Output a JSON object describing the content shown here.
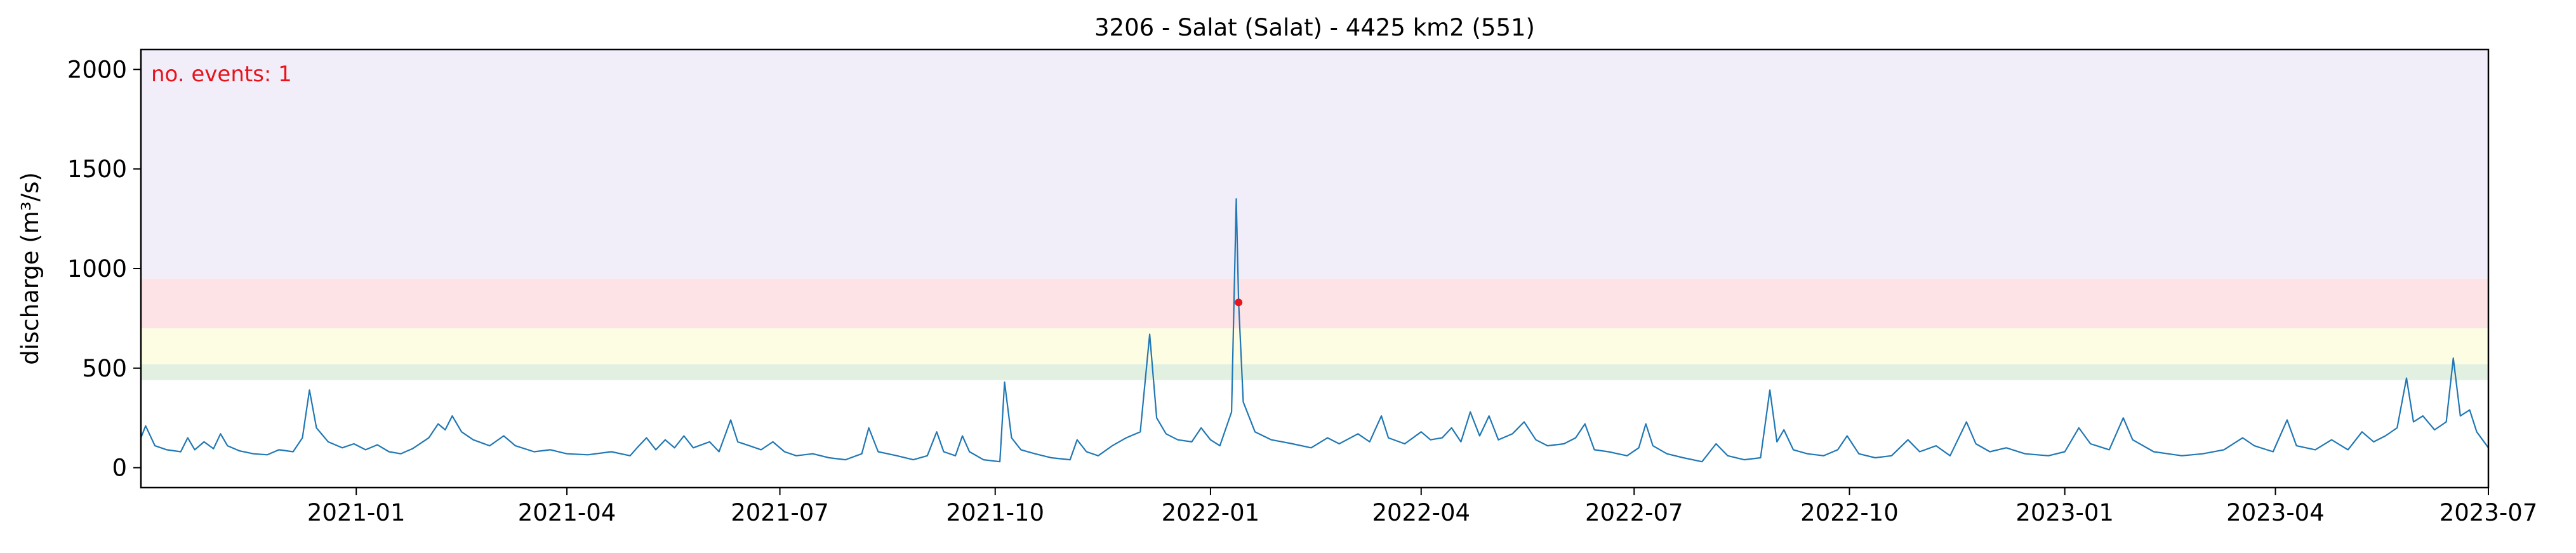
{
  "chart_data": {
    "type": "line",
    "title": "3206 - Salat (Salat) - 4425 km2 (551)",
    "xlabel": "",
    "ylabel": "discharge (m³/s)",
    "xlim": [
      "2020-10-01",
      "2023-07-01"
    ],
    "ylim": [
      -100,
      2100
    ],
    "x_ticks": [
      "2021-01",
      "2021-04",
      "2021-07",
      "2021-10",
      "2022-01",
      "2022-04",
      "2022-07",
      "2022-10",
      "2023-01",
      "2023-04",
      "2023-07"
    ],
    "y_ticks": [
      0,
      500,
      1000,
      1500,
      2000
    ],
    "grid": false,
    "bands": [
      {
        "from": 440,
        "to": 520,
        "color": "#e2f0e2"
      },
      {
        "from": 520,
        "to": 700,
        "color": "#fdfde3"
      },
      {
        "from": 700,
        "to": 950,
        "color": "#fde3e5"
      },
      {
        "from": 950,
        "to": 2100,
        "color": "#f1eefa"
      }
    ],
    "series": [
      {
        "color": "#1f77b4",
        "points": [
          [
            "2020-10-01",
            150
          ],
          [
            "2020-10-03",
            210
          ],
          [
            "2020-10-07",
            110
          ],
          [
            "2020-10-12",
            90
          ],
          [
            "2020-10-18",
            80
          ],
          [
            "2020-10-21",
            150
          ],
          [
            "2020-10-24",
            90
          ],
          [
            "2020-10-28",
            130
          ],
          [
            "2020-11-01",
            95
          ],
          [
            "2020-11-04",
            170
          ],
          [
            "2020-11-07",
            110
          ],
          [
            "2020-11-12",
            85
          ],
          [
            "2020-11-18",
            70
          ],
          [
            "2020-11-24",
            65
          ],
          [
            "2020-11-29",
            90
          ],
          [
            "2020-12-05",
            80
          ],
          [
            "2020-12-09",
            150
          ],
          [
            "2020-12-12",
            390
          ],
          [
            "2020-12-15",
            200
          ],
          [
            "2020-12-20",
            130
          ],
          [
            "2020-12-26",
            100
          ],
          [
            "2020-12-31",
            120
          ],
          [
            "2021-01-05",
            90
          ],
          [
            "2021-01-10",
            115
          ],
          [
            "2021-01-15",
            80
          ],
          [
            "2021-01-20",
            70
          ],
          [
            "2021-01-25",
            95
          ],
          [
            "2021-02-01",
            150
          ],
          [
            "2021-02-05",
            220
          ],
          [
            "2021-02-08",
            190
          ],
          [
            "2021-02-11",
            260
          ],
          [
            "2021-02-15",
            180
          ],
          [
            "2021-02-20",
            140
          ],
          [
            "2021-02-27",
            110
          ],
          [
            "2021-03-05",
            160
          ],
          [
            "2021-03-10",
            110
          ],
          [
            "2021-03-18",
            80
          ],
          [
            "2021-03-25",
            90
          ],
          [
            "2021-04-01",
            70
          ],
          [
            "2021-04-10",
            65
          ],
          [
            "2021-04-20",
            80
          ],
          [
            "2021-04-28",
            60
          ],
          [
            "2021-05-01",
            100
          ],
          [
            "2021-05-05",
            150
          ],
          [
            "2021-05-09",
            90
          ],
          [
            "2021-05-13",
            140
          ],
          [
            "2021-05-17",
            100
          ],
          [
            "2021-05-21",
            160
          ],
          [
            "2021-05-25",
            100
          ],
          [
            "2021-06-01",
            130
          ],
          [
            "2021-06-05",
            80
          ],
          [
            "2021-06-10",
            240
          ],
          [
            "2021-06-13",
            130
          ],
          [
            "2021-06-18",
            110
          ],
          [
            "2021-06-23",
            90
          ],
          [
            "2021-06-28",
            130
          ],
          [
            "2021-07-03",
            80
          ],
          [
            "2021-07-08",
            60
          ],
          [
            "2021-07-15",
            70
          ],
          [
            "2021-07-22",
            50
          ],
          [
            "2021-07-29",
            40
          ],
          [
            "2021-08-05",
            70
          ],
          [
            "2021-08-08",
            200
          ],
          [
            "2021-08-12",
            80
          ],
          [
            "2021-08-20",
            60
          ],
          [
            "2021-08-27",
            40
          ],
          [
            "2021-09-02",
            60
          ],
          [
            "2021-09-06",
            180
          ],
          [
            "2021-09-09",
            80
          ],
          [
            "2021-09-14",
            60
          ],
          [
            "2021-09-17",
            160
          ],
          [
            "2021-09-20",
            80
          ],
          [
            "2021-09-26",
            40
          ],
          [
            "2021-10-03",
            30
          ],
          [
            "2021-10-05",
            430
          ],
          [
            "2021-10-08",
            150
          ],
          [
            "2021-10-12",
            90
          ],
          [
            "2021-10-18",
            70
          ],
          [
            "2021-10-25",
            50
          ],
          [
            "2021-11-02",
            40
          ],
          [
            "2021-11-05",
            140
          ],
          [
            "2021-11-09",
            80
          ],
          [
            "2021-11-14",
            60
          ],
          [
            "2021-11-20",
            110
          ],
          [
            "2021-11-26",
            150
          ],
          [
            "2021-12-02",
            180
          ],
          [
            "2021-12-06",
            670
          ],
          [
            "2021-12-09",
            250
          ],
          [
            "2021-12-13",
            170
          ],
          [
            "2021-12-18",
            140
          ],
          [
            "2021-12-24",
            130
          ],
          [
            "2021-12-28",
            200
          ],
          [
            "2022-01-01",
            140
          ],
          [
            "2022-01-05",
            110
          ],
          [
            "2022-01-10",
            280
          ],
          [
            "2022-01-12",
            1350
          ],
          [
            "2022-01-13",
            830
          ],
          [
            "2022-01-15",
            330
          ],
          [
            "2022-01-20",
            180
          ],
          [
            "2022-01-27",
            140
          ],
          [
            "2022-02-05",
            120
          ],
          [
            "2022-02-13",
            100
          ],
          [
            "2022-02-20",
            150
          ],
          [
            "2022-02-25",
            120
          ],
          [
            "2022-03-05",
            170
          ],
          [
            "2022-03-10",
            130
          ],
          [
            "2022-03-15",
            260
          ],
          [
            "2022-03-18",
            150
          ],
          [
            "2022-03-25",
            120
          ],
          [
            "2022-04-01",
            180
          ],
          [
            "2022-04-05",
            140
          ],
          [
            "2022-04-10",
            150
          ],
          [
            "2022-04-14",
            200
          ],
          [
            "2022-04-18",
            130
          ],
          [
            "2022-04-22",
            280
          ],
          [
            "2022-04-26",
            160
          ],
          [
            "2022-04-30",
            260
          ],
          [
            "2022-05-04",
            140
          ],
          [
            "2022-05-10",
            170
          ],
          [
            "2022-05-15",
            230
          ],
          [
            "2022-05-20",
            140
          ],
          [
            "2022-05-25",
            110
          ],
          [
            "2022-06-01",
            120
          ],
          [
            "2022-06-06",
            150
          ],
          [
            "2022-06-10",
            220
          ],
          [
            "2022-06-14",
            90
          ],
          [
            "2022-06-20",
            80
          ],
          [
            "2022-06-28",
            60
          ],
          [
            "2022-07-03",
            100
          ],
          [
            "2022-07-06",
            220
          ],
          [
            "2022-07-09",
            110
          ],
          [
            "2022-07-15",
            70
          ],
          [
            "2022-07-22",
            50
          ],
          [
            "2022-07-30",
            30
          ],
          [
            "2022-08-05",
            120
          ],
          [
            "2022-08-10",
            60
          ],
          [
            "2022-08-17",
            40
          ],
          [
            "2022-08-24",
            50
          ],
          [
            "2022-08-28",
            390
          ],
          [
            "2022-08-31",
            130
          ],
          [
            "2022-09-03",
            190
          ],
          [
            "2022-09-07",
            90
          ],
          [
            "2022-09-13",
            70
          ],
          [
            "2022-09-20",
            60
          ],
          [
            "2022-09-26",
            90
          ],
          [
            "2022-09-30",
            160
          ],
          [
            "2022-10-05",
            70
          ],
          [
            "2022-10-12",
            50
          ],
          [
            "2022-10-19",
            60
          ],
          [
            "2022-10-26",
            140
          ],
          [
            "2022-10-31",
            80
          ],
          [
            "2022-11-07",
            110
          ],
          [
            "2022-11-13",
            60
          ],
          [
            "2022-11-20",
            230
          ],
          [
            "2022-11-24",
            120
          ],
          [
            "2022-11-30",
            80
          ],
          [
            "2022-12-07",
            100
          ],
          [
            "2022-12-15",
            70
          ],
          [
            "2022-12-25",
            60
          ],
          [
            "2023-01-01",
            80
          ],
          [
            "2023-01-07",
            200
          ],
          [
            "2023-01-12",
            120
          ],
          [
            "2023-01-20",
            90
          ],
          [
            "2023-01-26",
            250
          ],
          [
            "2023-01-30",
            140
          ],
          [
            "2023-02-08",
            80
          ],
          [
            "2023-02-20",
            60
          ],
          [
            "2023-03-01",
            70
          ],
          [
            "2023-03-10",
            90
          ],
          [
            "2023-03-18",
            150
          ],
          [
            "2023-03-23",
            110
          ],
          [
            "2023-03-31",
            80
          ],
          [
            "2023-04-06",
            240
          ],
          [
            "2023-04-10",
            110
          ],
          [
            "2023-04-18",
            90
          ],
          [
            "2023-04-25",
            140
          ],
          [
            "2023-05-02",
            90
          ],
          [
            "2023-05-08",
            180
          ],
          [
            "2023-05-13",
            130
          ],
          [
            "2023-05-18",
            160
          ],
          [
            "2023-05-23",
            200
          ],
          [
            "2023-05-27",
            450
          ],
          [
            "2023-05-30",
            230
          ],
          [
            "2023-06-03",
            260
          ],
          [
            "2023-06-08",
            190
          ],
          [
            "2023-06-13",
            230
          ],
          [
            "2023-06-16",
            550
          ],
          [
            "2023-06-19",
            260
          ],
          [
            "2023-06-23",
            290
          ],
          [
            "2023-06-26",
            180
          ],
          [
            "2023-07-01",
            100
          ]
        ]
      }
    ],
    "events": [
      {
        "date": "2022-01-13",
        "value": 830,
        "color": "#e8131b"
      }
    ],
    "annotation": {
      "text": "no. events: 1",
      "color": "#e8131b",
      "placement": "top-left"
    }
  }
}
